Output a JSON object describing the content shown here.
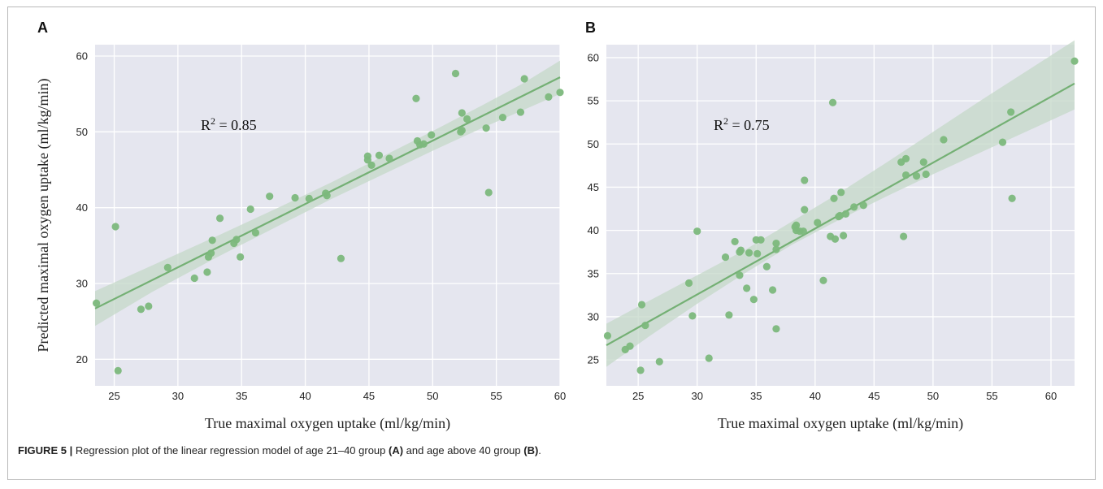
{
  "caption": {
    "figure_label": "FIGURE 5 |",
    "text_1": " Regression plot of the linear regression model of age 21–40 group ",
    "panel_a_ref": "(A)",
    "text_2": " and age above 40 group ",
    "panel_b_ref": "(B)",
    "text_3": "."
  },
  "colors": {
    "plot_background": "#e5e6ef",
    "grid": "#ffffff",
    "points": "#7cb87c",
    "regression_line": "#74b074",
    "confidence_band": "#c4d8c8"
  },
  "chart_data": [
    {
      "type": "scatter",
      "panel_label": "A",
      "title": "",
      "xlabel": "True maximal oxygen uptake (ml/kg/min)",
      "ylabel": "Predicted maximal oxygen uptake (ml/kg/min)",
      "xlim": [
        23.5,
        60
      ],
      "ylim": [
        16.5,
        61.5
      ],
      "xticks": [
        25,
        30,
        35,
        40,
        45,
        50,
        55,
        60
      ],
      "yticks": [
        20,
        30,
        40,
        50,
        60
      ],
      "grid": true,
      "annotation": {
        "prefix": "R",
        "superscript": "2",
        "suffix": " = 0.85"
      },
      "regression_line": {
        "x": [
          23.5,
          60
        ],
        "y": [
          26.7,
          57.2
        ]
      },
      "confidence_band": {
        "x": [
          23.5,
          28,
          33,
          38,
          42,
          46,
          50,
          54,
          57,
          60
        ],
        "lower": [
          24.4,
          28.9,
          33.4,
          37.7,
          41.1,
          44.3,
          47.5,
          50.6,
          52.8,
          55.0
        ],
        "upper": [
          29.0,
          32.4,
          36.2,
          40.1,
          43.3,
          46.7,
          50.1,
          53.6,
          56.3,
          59.4
        ]
      },
      "points": [
        {
          "x": 23.6,
          "y": 27.4
        },
        {
          "x": 25.1,
          "y": 37.5
        },
        {
          "x": 25.3,
          "y": 18.5
        },
        {
          "x": 27.1,
          "y": 26.6
        },
        {
          "x": 27.7,
          "y": 27.0
        },
        {
          "x": 29.2,
          "y": 32.1
        },
        {
          "x": 31.3,
          "y": 30.7
        },
        {
          "x": 32.3,
          "y": 31.5
        },
        {
          "x": 32.4,
          "y": 33.5
        },
        {
          "x": 32.6,
          "y": 34.0
        },
        {
          "x": 32.7,
          "y": 35.7
        },
        {
          "x": 33.3,
          "y": 38.6
        },
        {
          "x": 34.4,
          "y": 35.3
        },
        {
          "x": 34.6,
          "y": 35.8
        },
        {
          "x": 34.9,
          "y": 33.5
        },
        {
          "x": 35.7,
          "y": 39.8
        },
        {
          "x": 36.1,
          "y": 36.7
        },
        {
          "x": 37.2,
          "y": 41.5
        },
        {
          "x": 39.2,
          "y": 41.3
        },
        {
          "x": 40.3,
          "y": 41.2
        },
        {
          "x": 41.6,
          "y": 41.9
        },
        {
          "x": 41.7,
          "y": 41.6
        },
        {
          "x": 42.8,
          "y": 33.3
        },
        {
          "x": 44.9,
          "y": 46.8
        },
        {
          "x": 44.9,
          "y": 46.3
        },
        {
          "x": 45.2,
          "y": 45.6
        },
        {
          "x": 45.8,
          "y": 46.9
        },
        {
          "x": 46.6,
          "y": 46.5
        },
        {
          "x": 48.7,
          "y": 54.4
        },
        {
          "x": 48.8,
          "y": 48.8
        },
        {
          "x": 49.0,
          "y": 48.3
        },
        {
          "x": 49.3,
          "y": 48.4
        },
        {
          "x": 49.9,
          "y": 49.6
        },
        {
          "x": 51.8,
          "y": 57.7
        },
        {
          "x": 52.2,
          "y": 50.0
        },
        {
          "x": 52.3,
          "y": 52.5
        },
        {
          "x": 52.3,
          "y": 50.2
        },
        {
          "x": 52.7,
          "y": 51.7
        },
        {
          "x": 54.2,
          "y": 50.5
        },
        {
          "x": 54.4,
          "y": 42.0
        },
        {
          "x": 55.5,
          "y": 51.9
        },
        {
          "x": 56.9,
          "y": 52.6
        },
        {
          "x": 57.2,
          "y": 57.0
        },
        {
          "x": 59.1,
          "y": 54.6
        },
        {
          "x": 60.0,
          "y": 55.2
        }
      ]
    },
    {
      "type": "scatter",
      "panel_label": "B",
      "title": "",
      "xlabel": "True maximal oxygen uptake (ml/kg/min)",
      "ylabel": "",
      "xlim": [
        22.3,
        62
      ],
      "ylim": [
        22,
        61.5
      ],
      "xticks": [
        25,
        30,
        35,
        40,
        45,
        50,
        55,
        60
      ],
      "yticks": [
        25,
        30,
        35,
        40,
        45,
        50,
        55,
        60
      ],
      "grid": true,
      "annotation": {
        "prefix": "R",
        "superscript": "2",
        "suffix": " = 0.75"
      },
      "regression_line": {
        "x": [
          22.3,
          62
        ],
        "y": [
          26.7,
          57.0
        ]
      },
      "confidence_band": {
        "x": [
          22.3,
          26,
          30,
          34,
          38,
          42,
          46,
          50,
          54,
          58,
          62
        ],
        "lower": [
          24.2,
          27.8,
          31.5,
          35.0,
          38.3,
          41.2,
          43.9,
          46.5,
          49.0,
          51.5,
          54.0
        ],
        "upper": [
          29.2,
          31.9,
          34.8,
          37.7,
          41.0,
          44.3,
          47.8,
          51.4,
          55.0,
          58.5,
          62.0
        ]
      },
      "points": [
        {
          "x": 22.4,
          "y": 27.8
        },
        {
          "x": 23.9,
          "y": 26.2
        },
        {
          "x": 24.3,
          "y": 26.6
        },
        {
          "x": 25.2,
          "y": 23.8
        },
        {
          "x": 25.3,
          "y": 31.4
        },
        {
          "x": 25.6,
          "y": 29.0
        },
        {
          "x": 26.8,
          "y": 24.8
        },
        {
          "x": 29.3,
          "y": 33.9
        },
        {
          "x": 29.6,
          "y": 30.1
        },
        {
          "x": 30.0,
          "y": 39.9
        },
        {
          "x": 31.0,
          "y": 25.2
        },
        {
          "x": 32.4,
          "y": 36.9
        },
        {
          "x": 32.7,
          "y": 30.2
        },
        {
          "x": 33.2,
          "y": 38.7
        },
        {
          "x": 33.6,
          "y": 37.5
        },
        {
          "x": 33.6,
          "y": 34.8
        },
        {
          "x": 33.7,
          "y": 37.7
        },
        {
          "x": 34.2,
          "y": 33.3
        },
        {
          "x": 34.4,
          "y": 37.4
        },
        {
          "x": 34.8,
          "y": 32.0
        },
        {
          "x": 35.0,
          "y": 38.9
        },
        {
          "x": 35.1,
          "y": 37.3
        },
        {
          "x": 35.4,
          "y": 38.9
        },
        {
          "x": 35.9,
          "y": 35.8
        },
        {
          "x": 36.4,
          "y": 33.1
        },
        {
          "x": 36.7,
          "y": 28.6
        },
        {
          "x": 36.7,
          "y": 38.5
        },
        {
          "x": 36.7,
          "y": 37.8
        },
        {
          "x": 38.3,
          "y": 40.4
        },
        {
          "x": 38.4,
          "y": 40.6
        },
        {
          "x": 38.4,
          "y": 40.0
        },
        {
          "x": 38.7,
          "y": 39.9
        },
        {
          "x": 39.0,
          "y": 39.9
        },
        {
          "x": 39.1,
          "y": 42.4
        },
        {
          "x": 39.1,
          "y": 45.8
        },
        {
          "x": 40.2,
          "y": 40.9
        },
        {
          "x": 40.7,
          "y": 34.2
        },
        {
          "x": 41.3,
          "y": 39.3
        },
        {
          "x": 41.5,
          "y": 54.8
        },
        {
          "x": 41.6,
          "y": 43.7
        },
        {
          "x": 41.7,
          "y": 39.0
        },
        {
          "x": 42.0,
          "y": 41.6
        },
        {
          "x": 42.1,
          "y": 41.7
        },
        {
          "x": 42.2,
          "y": 44.4
        },
        {
          "x": 42.4,
          "y": 39.4
        },
        {
          "x": 42.6,
          "y": 41.9
        },
        {
          "x": 43.3,
          "y": 42.7
        },
        {
          "x": 44.1,
          "y": 42.9
        },
        {
          "x": 47.3,
          "y": 47.9
        },
        {
          "x": 47.5,
          "y": 39.3
        },
        {
          "x": 47.7,
          "y": 48.3
        },
        {
          "x": 47.7,
          "y": 46.4
        },
        {
          "x": 48.6,
          "y": 46.3
        },
        {
          "x": 49.2,
          "y": 47.9
        },
        {
          "x": 49.4,
          "y": 46.5
        },
        {
          "x": 50.9,
          "y": 50.5
        },
        {
          "x": 55.9,
          "y": 50.2
        },
        {
          "x": 56.6,
          "y": 53.7
        },
        {
          "x": 56.7,
          "y": 43.7
        },
        {
          "x": 62.0,
          "y": 59.6
        }
      ]
    }
  ]
}
